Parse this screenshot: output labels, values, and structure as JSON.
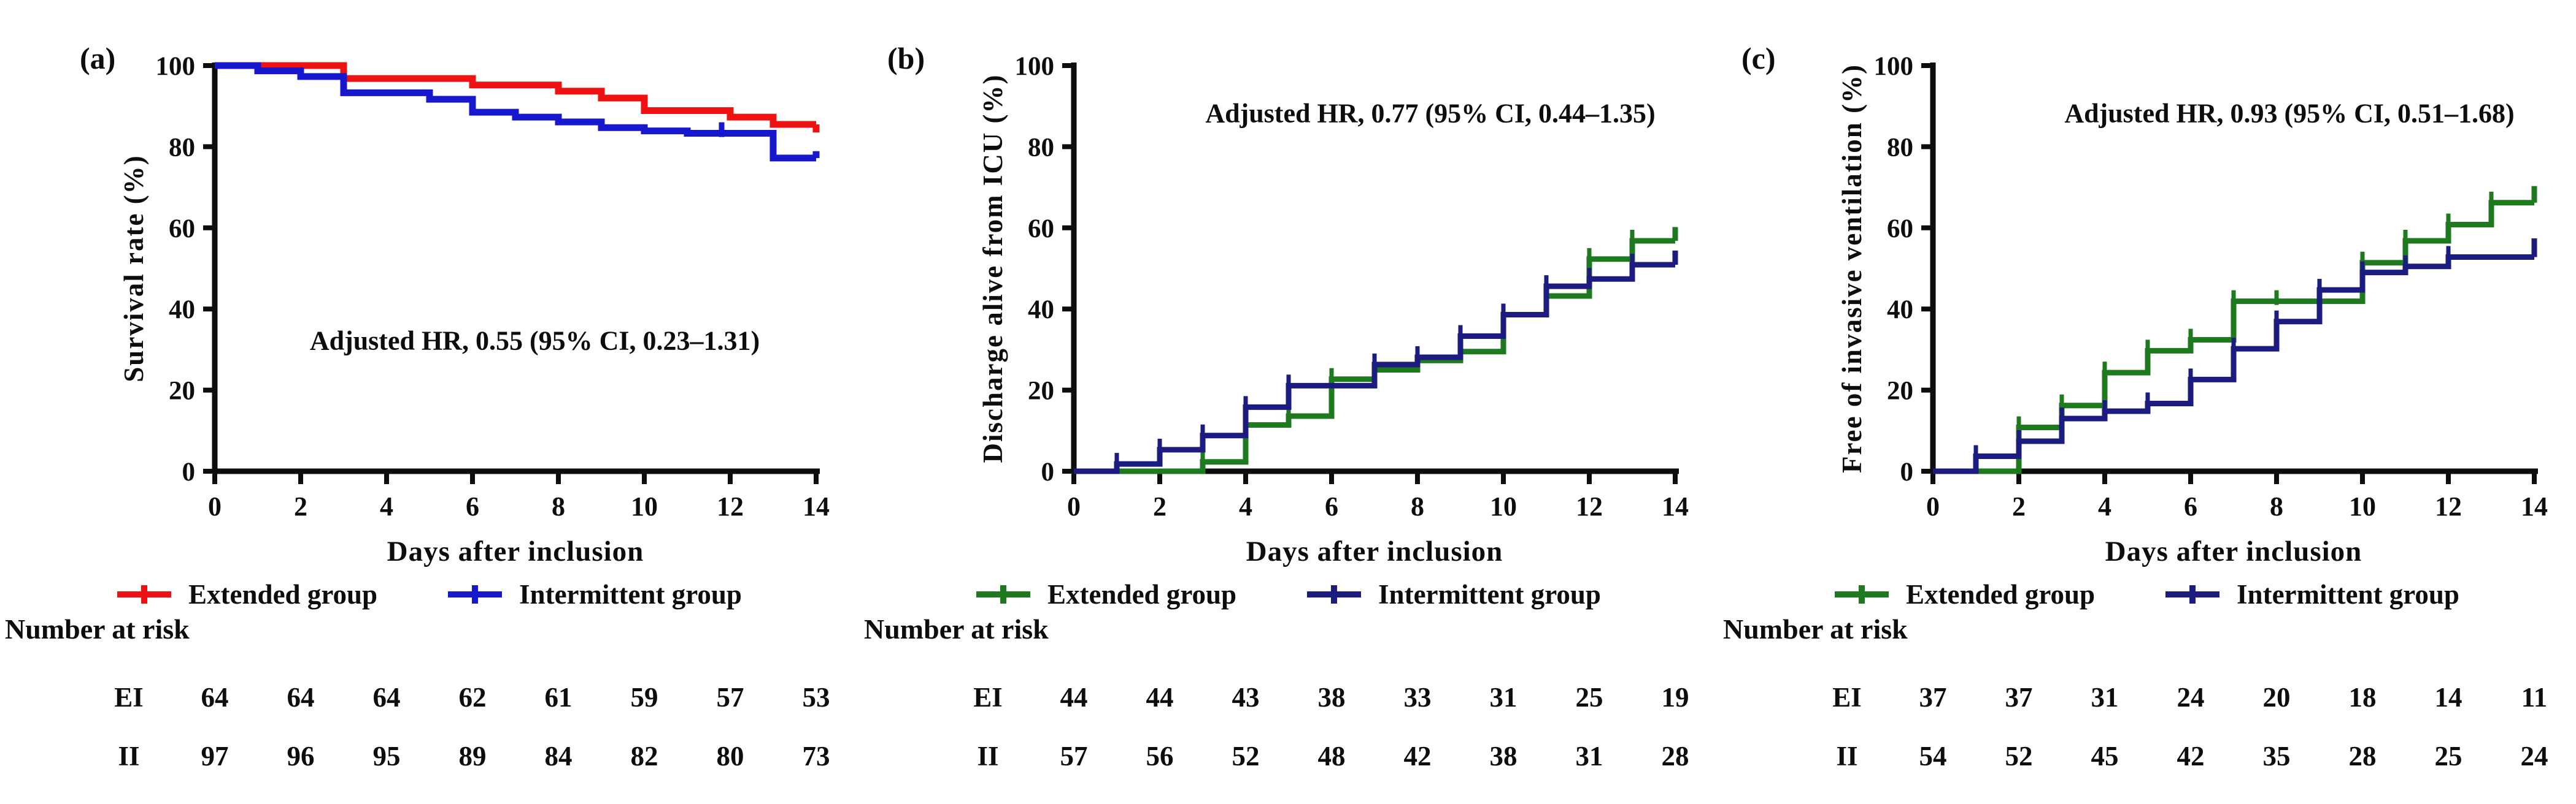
{
  "chart_data": [
    {
      "type": "line",
      "subtype": "kaplan-meier-step",
      "panel_letter": "(a)",
      "xlabel": "Days after inclusion",
      "ylabel": "Survival rate (%)",
      "annotation": "Adjusted HR, 0.55 (95% CI, 0.23–1.31)",
      "annotation_pos": {
        "x": 7.45,
        "y": 30
      },
      "xlim": [
        0,
        14
      ],
      "ylim": [
        0,
        100
      ],
      "xticks": [
        0,
        2,
        4,
        6,
        8,
        10,
        12,
        14
      ],
      "yticks": [
        0,
        20,
        40,
        60,
        80,
        100
      ],
      "grid": "off",
      "legend_position": "below",
      "line_width": 11,
      "series": [
        {
          "name": "Extended group",
          "color": "#ee1212",
          "step_ticks": false,
          "steps": [
            [
              0,
              100
            ],
            [
              3,
              96.8
            ],
            [
              6,
              95.2
            ],
            [
              8,
              93.7
            ],
            [
              9,
              92.0
            ],
            [
              10,
              88.9
            ],
            [
              12,
              87.3
            ],
            [
              13,
              85.5
            ],
            [
              14,
              85.5
            ]
          ],
          "end_tick_dy": -2.0,
          "extra_ticks": []
        },
        {
          "name": "Intermittent group",
          "color": "#1717cd",
          "step_ticks": false,
          "steps": [
            [
              0,
              100
            ],
            [
              1,
              98.7
            ],
            [
              2,
              97.3
            ],
            [
              3,
              93.3
            ],
            [
              5,
              91.7
            ],
            [
              6,
              88.5
            ],
            [
              7,
              87.3
            ],
            [
              8,
              86.1
            ],
            [
              9,
              84.7
            ],
            [
              10,
              83.9
            ],
            [
              11,
              83.3
            ],
            [
              13,
              77.2
            ],
            [
              14,
              77.2
            ]
          ],
          "end_tick_dy": 1.7,
          "extra_ticks": [
            [
              11.8,
              83.3
            ]
          ]
        }
      ],
      "risk_table": {
        "title": "Number at risk",
        "days": [
          0,
          2,
          4,
          6,
          8,
          10,
          12,
          14
        ],
        "rows": [
          {
            "label": "EI",
            "values": [
              "64",
              "64",
              "64",
              "62",
              "61",
              "59",
              "57",
              "53"
            ]
          },
          {
            "label": "II",
            "values": [
              "97",
              "96",
              "95",
              "89",
              "84",
              "82",
              "80",
              "73"
            ]
          }
        ]
      }
    },
    {
      "type": "line",
      "subtype": "kaplan-meier-step",
      "panel_letter": "(b)",
      "xlabel": "Days after inclusion",
      "ylabel": "Discharge alive from ICU (%)",
      "annotation": "Adjusted HR, 0.77 (95% CI, 0.44–1.35)",
      "annotation_pos": {
        "x": 8.3,
        "y": 86
      },
      "xlim": [
        0,
        14
      ],
      "ylim": [
        0,
        100
      ],
      "xticks": [
        0,
        2,
        4,
        6,
        8,
        10,
        12,
        14
      ],
      "yticks": [
        0,
        20,
        40,
        60,
        80,
        100
      ],
      "grid": "off",
      "legend_position": "below",
      "line_width": 9,
      "series": [
        {
          "name": "Extended group",
          "color": "#1f7a1f",
          "step_ticks": true,
          "steps": [
            [
              0,
              0
            ],
            [
              3,
              2.3
            ],
            [
              4,
              11.4
            ],
            [
              5,
              13.6
            ],
            [
              6,
              22.7
            ],
            [
              7,
              25.0
            ],
            [
              8,
              27.3
            ],
            [
              9,
              29.5
            ],
            [
              10,
              38.6
            ],
            [
              11,
              43.2
            ],
            [
              12,
              52.3
            ],
            [
              13,
              56.8
            ],
            [
              14,
              56.8
            ]
          ],
          "end_tick_dy": 3.4,
          "extra_ticks": []
        },
        {
          "name": "Intermittent group",
          "color": "#1b1b80",
          "step_ticks": true,
          "steps": [
            [
              0,
              0
            ],
            [
              1,
              1.8
            ],
            [
              2,
              5.3
            ],
            [
              3,
              8.8
            ],
            [
              4,
              15.8
            ],
            [
              5,
              21.1
            ],
            [
              7,
              26.3
            ],
            [
              8,
              28.1
            ],
            [
              9,
              33.3
            ],
            [
              10,
              38.6
            ],
            [
              11,
              45.6
            ],
            [
              12,
              47.4
            ],
            [
              13,
              50.9
            ],
            [
              14,
              50.9
            ]
          ],
          "end_tick_dy": 3.5,
          "extra_ticks": []
        }
      ],
      "risk_table": {
        "title": "Number at risk",
        "days": [
          0,
          2,
          4,
          6,
          8,
          10,
          12,
          14
        ],
        "rows": [
          {
            "label": "EI",
            "values": [
              "44",
              "44",
              "43",
              "38",
              "33",
              "31",
              "25",
              "19"
            ]
          },
          {
            "label": "II",
            "values": [
              "57",
              "56",
              "52",
              "48",
              "42",
              "38",
              "31",
              "28"
            ]
          }
        ]
      }
    },
    {
      "type": "line",
      "subtype": "kaplan-meier-step",
      "panel_letter": "(c)",
      "xlabel": "Days after inclusion",
      "ylabel": "Free of invasive ventilation (%)",
      "annotation": "Adjusted HR, 0.93 (95% CI, 0.51–1.68)",
      "annotation_pos": {
        "x": 8.3,
        "y": 86
      },
      "xlim": [
        0,
        14
      ],
      "ylim": [
        0,
        100
      ],
      "xticks": [
        0,
        2,
        4,
        6,
        8,
        10,
        12,
        14
      ],
      "yticks": [
        0,
        20,
        40,
        60,
        80,
        100
      ],
      "grid": "off",
      "legend_position": "below",
      "line_width": 9,
      "series": [
        {
          "name": "Extended group",
          "color": "#1f7a1f",
          "step_ticks": true,
          "steps": [
            [
              0,
              0
            ],
            [
              2,
              10.8
            ],
            [
              3,
              16.2
            ],
            [
              4,
              24.3
            ],
            [
              5,
              29.7
            ],
            [
              6,
              32.4
            ],
            [
              7,
              41.9
            ],
            [
              10,
              51.4
            ],
            [
              11,
              56.8
            ],
            [
              12,
              60.8
            ],
            [
              13,
              66.2
            ],
            [
              14,
              66.2
            ]
          ],
          "end_tick_dy": 4.1,
          "extra_ticks": [
            [
              8,
              41.9
            ]
          ]
        },
        {
          "name": "Intermittent group",
          "color": "#1b1b80",
          "step_ticks": true,
          "steps": [
            [
              0,
              0
            ],
            [
              1,
              3.7
            ],
            [
              2,
              7.4
            ],
            [
              3,
              13.0
            ],
            [
              4,
              14.8
            ],
            [
              5,
              16.7
            ],
            [
              6,
              22.6
            ],
            [
              7,
              30.2
            ],
            [
              8,
              36.9
            ],
            [
              9,
              44.7
            ],
            [
              10,
              49.0
            ],
            [
              11,
              50.5
            ],
            [
              12,
              52.8
            ],
            [
              14,
              52.8
            ]
          ],
          "end_tick_dy": 4.6,
          "extra_ticks": []
        }
      ],
      "risk_table": {
        "title": "Number at risk",
        "days": [
          0,
          2,
          4,
          6,
          8,
          10,
          12,
          14
        ],
        "rows": [
          {
            "label": "EI",
            "values": [
              "37",
              "37",
              "31",
              "24",
              "20",
              "18",
              "14",
              "11"
            ]
          },
          {
            "label": "II",
            "values": [
              "54",
              "52",
              "45",
              "42",
              "35",
              "28",
              "25",
              "24"
            ]
          }
        ]
      }
    }
  ]
}
